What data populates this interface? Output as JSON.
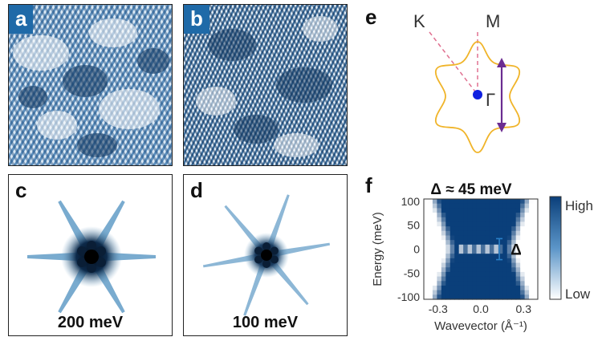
{
  "panels": {
    "a": {
      "tag": "a"
    },
    "b": {
      "tag": "b"
    },
    "c": {
      "tag": "c",
      "caption": "200 meV"
    },
    "d": {
      "tag": "d",
      "caption": "100 meV"
    },
    "e": {
      "tag": "e",
      "k_label": "K",
      "m_label": "M",
      "gamma_label": "Γ"
    },
    "f": {
      "tag": "f",
      "title": "Δ ≈ 45 meV",
      "gap_label": "Δ",
      "colorbar_high": "High",
      "colorbar_low": "Low"
    }
  },
  "colors": {
    "stm_dark": "#12365e",
    "stm_light": "#ffffff",
    "fermi_surface": "#f0b429",
    "arrow": "#6b2c91",
    "gamma_dot": "#1020e0",
    "dashed": "#e07090",
    "map_dark": "#0a3f7a"
  },
  "chart_data": {
    "type": "heatmap",
    "title": "Δ ≈ 45 meV",
    "xlabel": "Wavevector (Å⁻¹)",
    "ylabel": "Energy (meV)",
    "xlim": [
      -0.4,
      0.4
    ],
    "ylim": [
      -105,
      105
    ],
    "xticks": [
      -0.3,
      0.0,
      0.3
    ],
    "xtick_labels": [
      "-0.3",
      "0.0",
      "0.3"
    ],
    "yticks": [
      100,
      50,
      0,
      -50,
      -100
    ],
    "ytick_labels": [
      "100",
      "50",
      "0",
      "-50",
      "-100"
    ],
    "colorbar": {
      "high": "High",
      "low": "Low"
    },
    "gap_marker": {
      "x": 0.13,
      "y_from": -22,
      "y_to": 22,
      "label": "Δ"
    }
  }
}
